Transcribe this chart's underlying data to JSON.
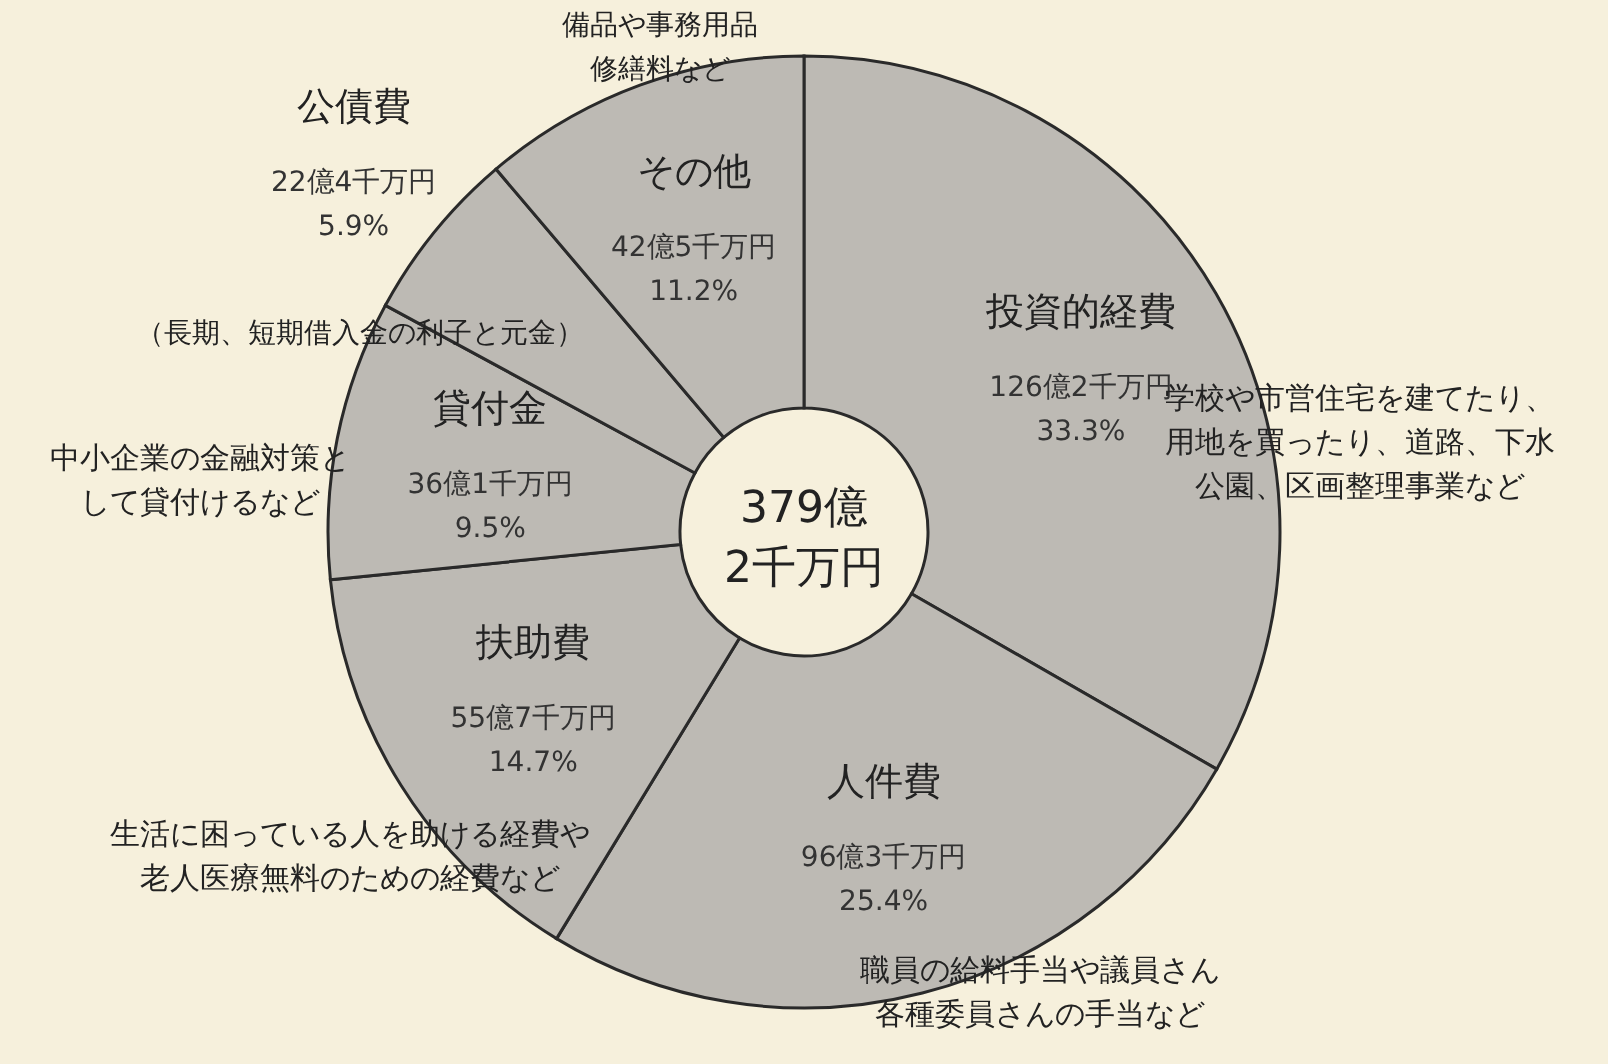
{
  "chart_data": {
    "type": "donut",
    "categories": [
      "投資的経費",
      "人件費",
      "扶助費",
      "貸付金",
      "公債費",
      "その他"
    ],
    "values": [
      33.3,
      25.4,
      14.7,
      9.5,
      5.9,
      11.2
    ],
    "colors": [
      "#bdbab4",
      "#bdbab4",
      "#bdbab4",
      "#bdbab4",
      "#bdbab4",
      "#bdbab4"
    ],
    "value_labels": [
      "126億2千万円\n33.3%",
      "96億3千万円\n25.4%",
      "55億7千万円\n14.7%",
      "36億1千万円\n9.5%",
      "22億4千万円\n5.9%",
      "42億5千万円\n11.2%"
    ],
    "annotations": [
      "379億\n2千万円",
      "学校や市営住宅を建てたり、",
      "用地を買ったり、道路、下水",
      "公園、区画整理事業など",
      "職員の給料手当や議員さん",
      "各種委員さんの手当など",
      "生活に困っている人を助ける経費や",
      "老人医療無料のための経費など",
      "中小企業の金融対策と",
      "して貸付けるなど",
      "（長期、短期借入金の利子と元金）",
      "備品や事務用品",
      "修繕料など"
    ]
  }
}
